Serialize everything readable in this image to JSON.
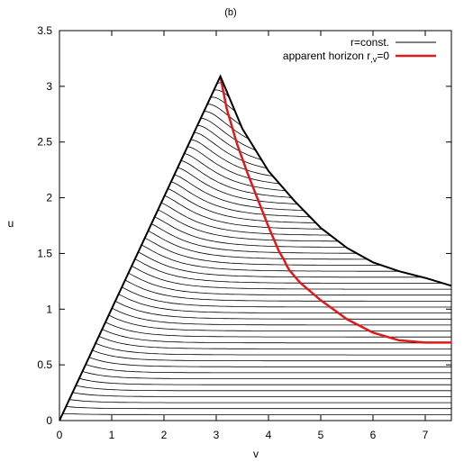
{
  "chart_data": {
    "type": "line",
    "title": "(b)",
    "xlabel": "v",
    "ylabel": "u",
    "xlim": [
      0,
      7.5
    ],
    "ylim": [
      0,
      3.5
    ],
    "xticks": [
      "0",
      "1",
      "2",
      "3",
      "4",
      "5",
      "6",
      "7"
    ],
    "yticks": [
      "0",
      "0.5",
      "1",
      "1.5",
      "2",
      "2.5",
      "3",
      "3.5"
    ],
    "legend_position": "top-right",
    "colors": {
      "const_lines": "#000000",
      "horizon": "#e0191b"
    },
    "boundary": {
      "x": [
        0,
        3.08,
        3.5,
        4.0,
        4.5,
        5.0,
        5.5,
        6.0,
        6.5,
        7.0,
        7.5
      ],
      "y": [
        0,
        3.09,
        2.62,
        2.24,
        1.97,
        1.73,
        1.55,
        1.42,
        1.34,
        1.28,
        1.21
      ]
    },
    "series": [
      {
        "name": "r=const.",
        "label_main": "r=const.",
        "family": "constant-r curves (family of 48 curves filling the region below the boundary)",
        "count": 48
      },
      {
        "name": "apparent horizon r,v=0",
        "label_main": "apparent horizon r",
        "label_sub": ",v",
        "label_tail": "=0",
        "x": [
          3.08,
          3.2,
          3.4,
          3.6,
          3.8,
          4.0,
          4.2,
          4.3,
          4.35,
          4.4,
          4.6,
          5.0,
          5.5,
          6.0,
          6.5,
          7.0,
          7.5
        ],
        "y": [
          3.09,
          2.8,
          2.48,
          2.22,
          1.98,
          1.74,
          1.52,
          1.44,
          1.39,
          1.35,
          1.24,
          1.08,
          0.91,
          0.79,
          0.72,
          0.7,
          0.7
        ]
      }
    ]
  }
}
